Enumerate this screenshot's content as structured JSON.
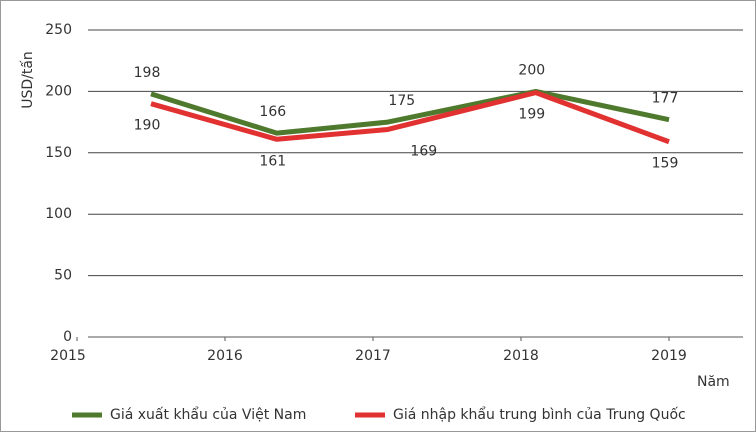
{
  "chart_data": {
    "type": "line",
    "ylabel": "USD/tấn",
    "xlabel": "Năm",
    "x": [
      2015.5,
      2016.35,
      2017.1,
      2018.1,
      2019.0
    ],
    "xlim": [
      2015,
      2019.5
    ],
    "xticks": [
      2015,
      2016,
      2017,
      2018,
      2019
    ],
    "ylim": [
      0,
      250
    ],
    "yticks": [
      0,
      50,
      100,
      150,
      200,
      250
    ],
    "grid": true,
    "legend": "bottom",
    "series": [
      {
        "name": "Giá xuất khẩu của Việt Nam",
        "color": "#4f7a2e",
        "values": [
          198,
          166,
          175,
          200,
          177
        ]
      },
      {
        "name": "Giá nhập khẩu trung bình của Trung Quốc",
        "color": "#e23131",
        "values": [
          190,
          161,
          169,
          199,
          159
        ]
      }
    ]
  }
}
